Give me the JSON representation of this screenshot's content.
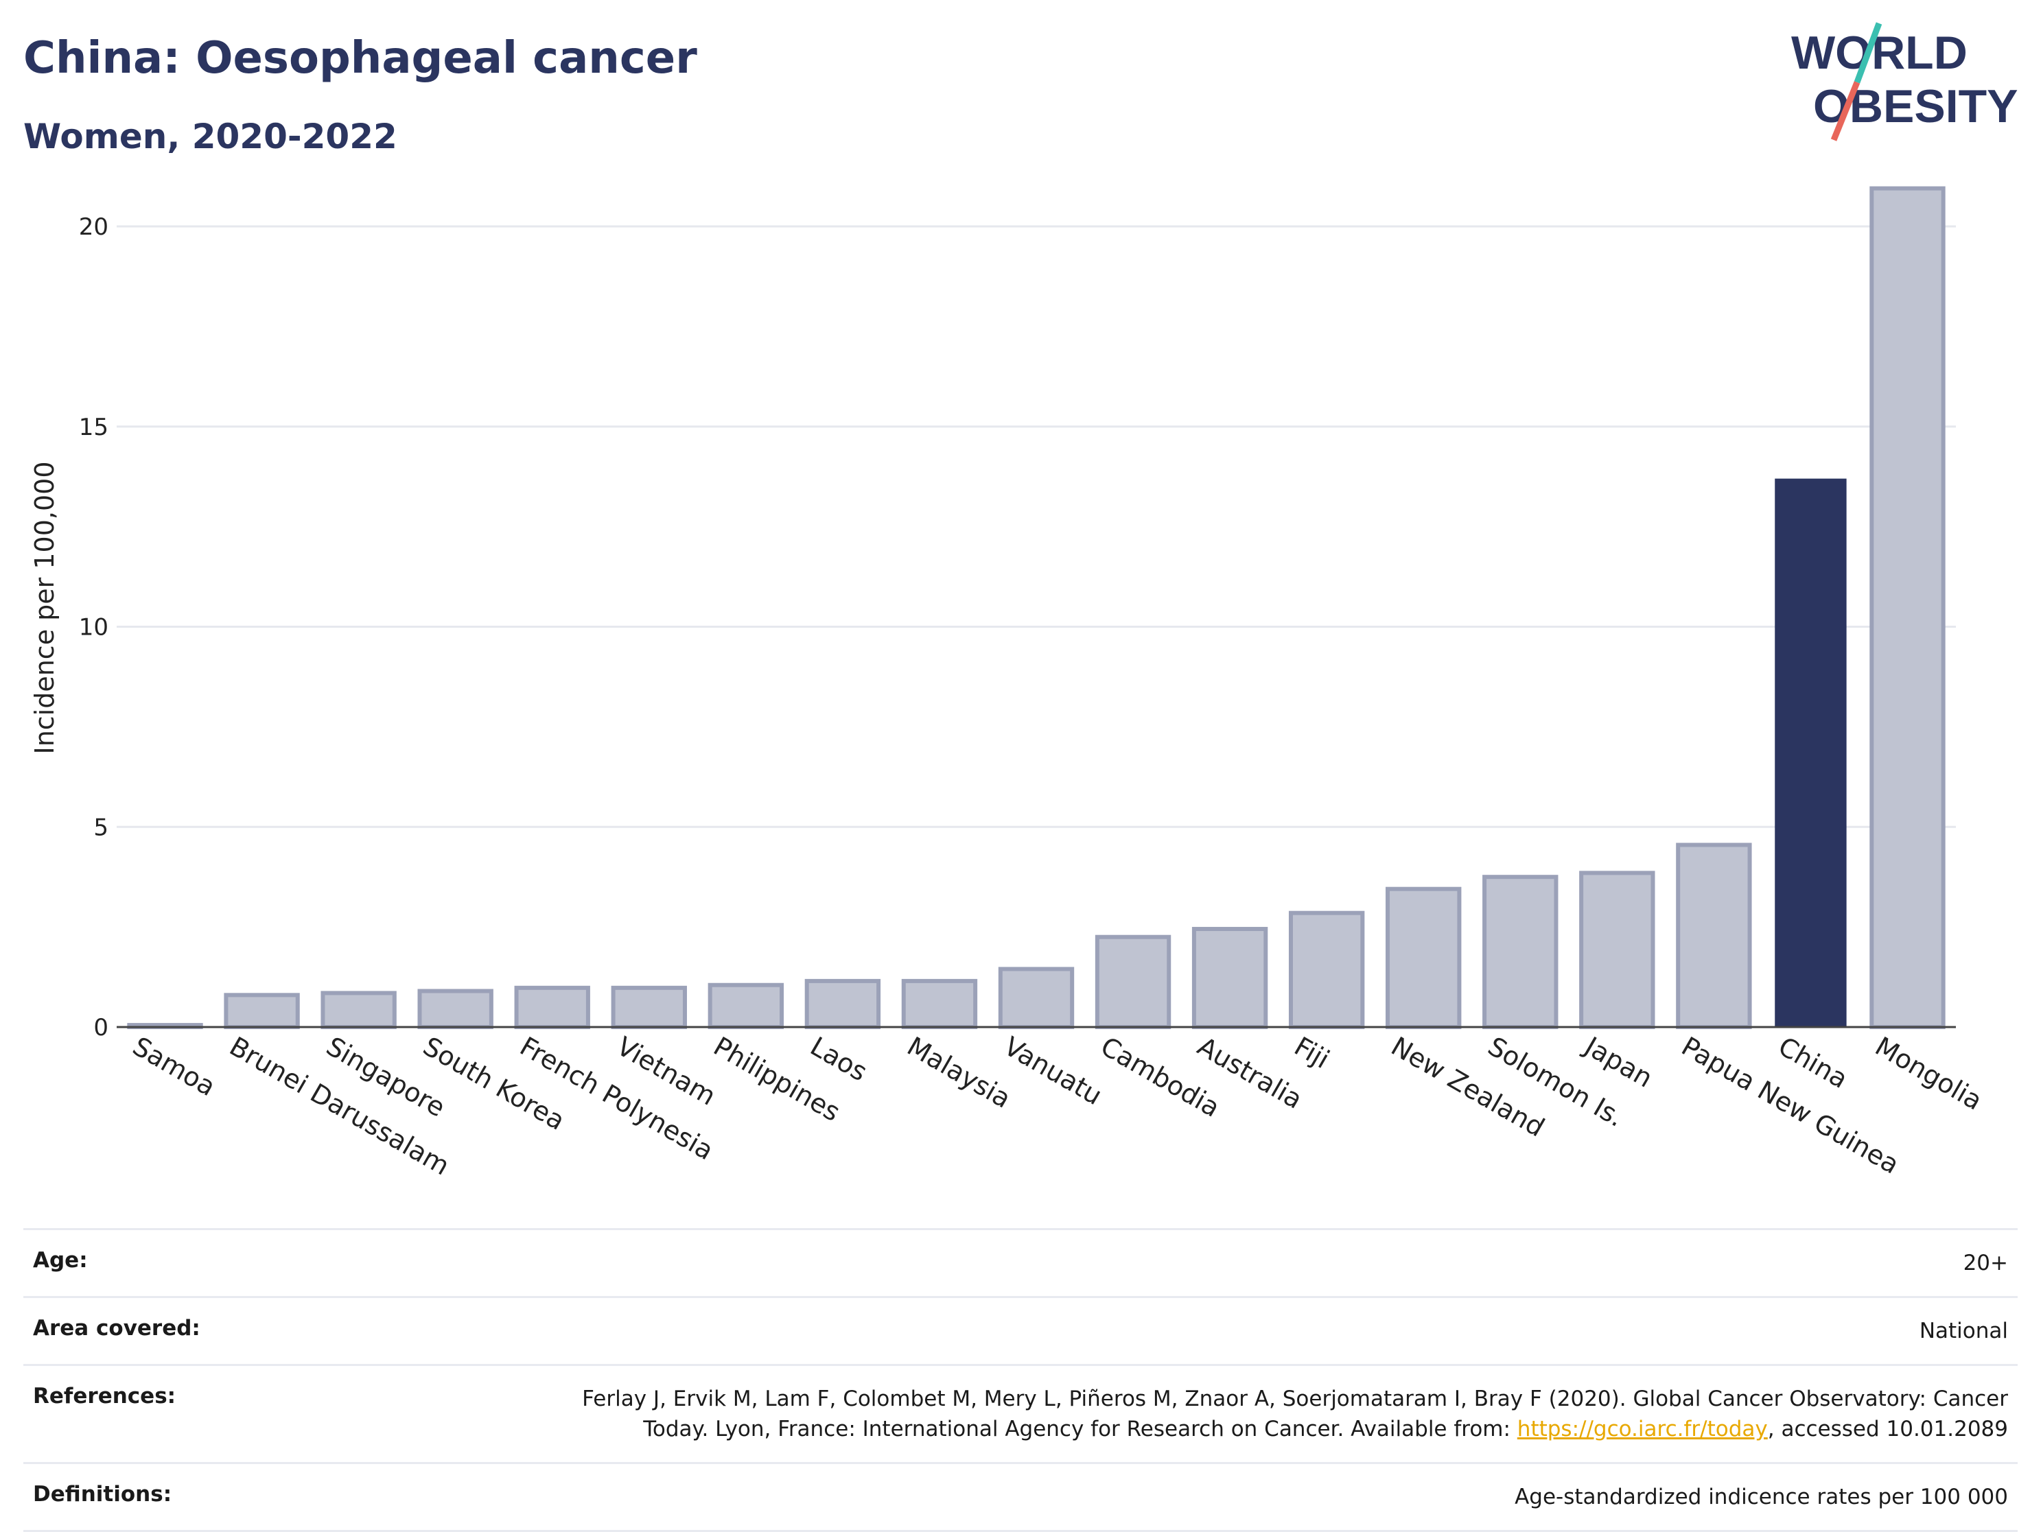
{
  "header": {
    "title": "China: Oesophageal cancer",
    "subtitle": "Women, 2020-2022"
  },
  "logo": {
    "line1": "WORLD",
    "line2": "OBESITY",
    "colors": {
      "text": "#2b3560",
      "slash_top": "#3bbfb0",
      "slash_bottom": "#e8665a"
    }
  },
  "colors": {
    "highlight_bar": "#2b3560",
    "other_bar_fill": "#bfc3d1",
    "other_bar_stroke": "#9ba1b8",
    "grid": "#e6e8ee",
    "link": "#e8a800"
  },
  "chart_data": {
    "type": "bar",
    "title": "",
    "xlabel": "",
    "ylabel": "Incidence per 100,000",
    "ylim": [
      0,
      22
    ],
    "yticks": [
      0,
      5,
      10,
      15,
      20
    ],
    "grid": true,
    "highlight": "China",
    "categories": [
      "Samoa",
      "Brunei Darussalam",
      "Singapore",
      "South Korea",
      "French Polynesia",
      "Vietnam",
      "Philippines",
      "Laos",
      "Malaysia",
      "Vanuatu",
      "Cambodia",
      "Australia",
      "Fiji",
      "New Zealand",
      "Solomon Is.",
      "Japan",
      "Papua New Guinea",
      "China",
      "Mongolia"
    ],
    "values": [
      0.05,
      0.8,
      0.85,
      0.9,
      0.98,
      0.98,
      1.05,
      1.15,
      1.15,
      1.45,
      2.25,
      2.45,
      2.85,
      3.45,
      3.75,
      3.85,
      4.55,
      13.7,
      20.95
    ]
  },
  "info": {
    "age_label": "Age:",
    "age_value": "20+",
    "area_label": "Area covered:",
    "area_value": "National",
    "references_label": "References:",
    "references_line1": "Ferlay J, Ervik M, Lam F, Colombet M, Mery L, Piñeros M, Znaor A, Soerjomataram I, Bray F (2020). Global Cancer Observatory: Cancer",
    "references_line2_pre": "Today. Lyon, France: International Agency for Research on Cancer. Available from: ",
    "references_link": "https://gco.iarc.fr/today",
    "references_line2_post": ", accessed 10.01.2089",
    "definitions_label": "Definitions:",
    "definitions_value": "Age-standardized indicence rates per 100 000"
  }
}
